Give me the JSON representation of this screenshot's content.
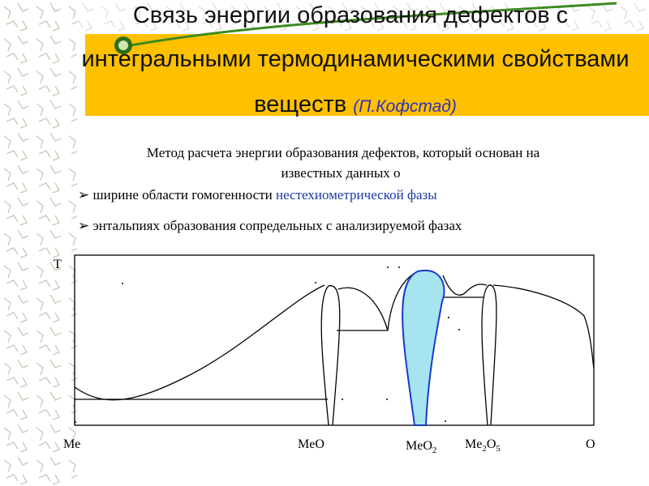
{
  "header": {
    "title_lines": [
      "Связь энергии образования дефектов с",
      "интегральными термодинамическими свойствами",
      "веществ"
    ],
    "author": "(П.Кофстад)"
  },
  "body": {
    "intro_lines": [
      "Метод расчета энергии образования  дефектов, который основан на",
      "известных данных  о"
    ],
    "bullets": [
      {
        "parts": [
          "ширине области гомогенности ",
          "нестехиометрической фазы"
        ]
      },
      {
        "parts": [
          "энтальпиях образования сопредельных с анализируемой фазах"
        ]
      }
    ]
  },
  "diagram": {
    "y_axis_label": "T",
    "x_labels": [
      {
        "parts": [
          "Me"
        ]
      },
      {
        "parts": [
          "MeO"
        ]
      },
      {
        "parts": [
          "MeO",
          "2"
        ]
      },
      {
        "parts": [
          "Me",
          "2",
          "O",
          "5"
        ]
      },
      {
        "parts": [
          "O"
        ]
      }
    ]
  }
}
